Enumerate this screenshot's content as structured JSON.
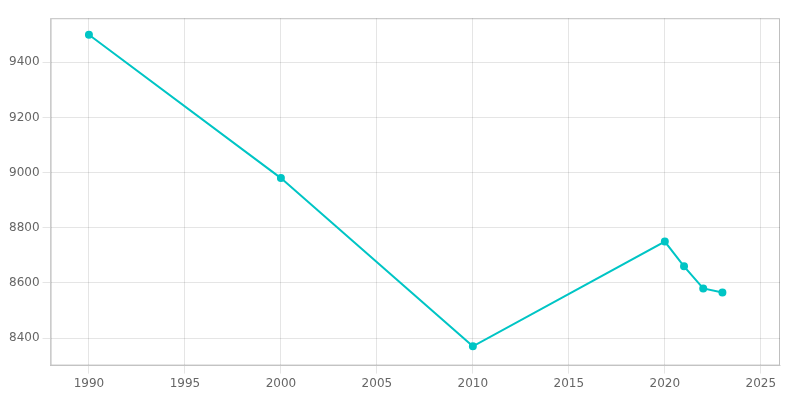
{
  "chart_data": {
    "type": "line",
    "x": [
      1990,
      2000,
      2010,
      2020,
      2021,
      2022,
      2023
    ],
    "values": [
      9500,
      8980,
      8370,
      8750,
      8660,
      8580,
      8565
    ],
    "color": "#00C5C5",
    "marker": "circle",
    "xlim": [
      1988,
      2026
    ],
    "ylim": [
      8300,
      9560
    ],
    "xticks": [
      1990,
      1995,
      2000,
      2005,
      2010,
      2015,
      2020,
      2025
    ],
    "yticks": [
      8400,
      8600,
      8800,
      9000,
      9200,
      9400
    ],
    "grid": true
  }
}
